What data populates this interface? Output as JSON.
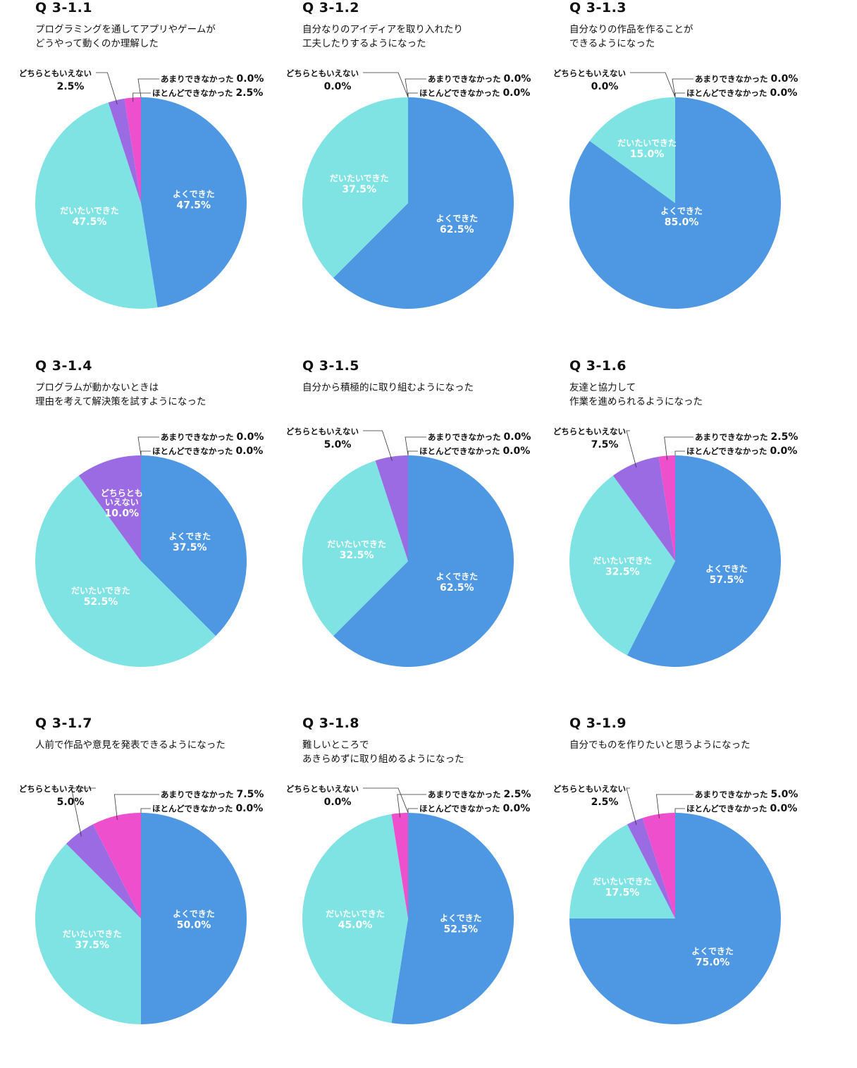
{
  "categories": [
    "よくできた",
    "だいたいできた",
    "どちらともいえない",
    "あまりできなかった",
    "ほとんどできなかった"
  ],
  "colors": {
    "よくできた": "#4e98e3",
    "だいたいできた": "#7fe3e3",
    "どちらともいえない": "#9b6be3",
    "あまりできなかった": "#ee4fcc",
    "ほとんどできなかった": "#ee4fcc"
  },
  "chart_data": [
    {
      "type": "pie",
      "id": "Q 3-1.1",
      "title": "プログラミングを通してアプリやゲームが\nどうやって動くのか理解した",
      "slices": [
        {
          "label": "よくできた",
          "value": 47.5,
          "display": "47.5%"
        },
        {
          "label": "だいたいできた",
          "value": 47.5,
          "display": "47.5%"
        },
        {
          "label": "どちらともいえない",
          "value": 2.5,
          "display": "2.5%"
        },
        {
          "label": "あまりできなかった",
          "value": 0.0,
          "display": "0.0%"
        },
        {
          "label": "ほとんどできなかった",
          "value": 2.5,
          "display": "2.5%"
        }
      ]
    },
    {
      "type": "pie",
      "id": "Q 3-1.2",
      "title": "自分なりのアイディアを取り入れたり\n工夫したりするようになった",
      "slices": [
        {
          "label": "よくできた",
          "value": 62.5,
          "display": "62.5%"
        },
        {
          "label": "だいたいできた",
          "value": 37.5,
          "display": "37.5%"
        },
        {
          "label": "どちらともいえない",
          "value": 0.0,
          "display": "0.0%"
        },
        {
          "label": "あまりできなかった",
          "value": 0.0,
          "display": "0.0%"
        },
        {
          "label": "ほとんどできなかった",
          "value": 0.0,
          "display": "0.0%"
        }
      ]
    },
    {
      "type": "pie",
      "id": "Q 3-1.3",
      "title": "自分なりの作品を作ることが\nできるようになった",
      "slices": [
        {
          "label": "よくできた",
          "value": 85.0,
          "display": "85.0%"
        },
        {
          "label": "だいたいできた",
          "value": 15.0,
          "display": "15.0%"
        },
        {
          "label": "どちらともいえない",
          "value": 0.0,
          "display": "0.0%"
        },
        {
          "label": "あまりできなかった",
          "value": 0.0,
          "display": "0.0%"
        },
        {
          "label": "ほとんどできなかった",
          "value": 0.0,
          "display": "0.0%"
        }
      ]
    },
    {
      "type": "pie",
      "id": "Q 3-1.4",
      "title": "プログラムが動かないときは\n理由を考えて解決策を試すようになった",
      "slices": [
        {
          "label": "よくできた",
          "value": 37.5,
          "display": "37.5%"
        },
        {
          "label": "だいたいできた",
          "value": 52.5,
          "display": "52.5%"
        },
        {
          "label": "どちらともいえない",
          "value": 10.0,
          "display": "10.0%",
          "text": "どちらとも\nいえない"
        },
        {
          "label": "あまりできなかった",
          "value": 0.0,
          "display": "0.0%"
        },
        {
          "label": "ほとんどできなかった",
          "value": 0.0,
          "display": "0.0%"
        }
      ]
    },
    {
      "type": "pie",
      "id": "Q 3-1.5",
      "title": "自分から積極的に取り組むようになった",
      "slices": [
        {
          "label": "よくできた",
          "value": 62.5,
          "display": "62.5%"
        },
        {
          "label": "だいたいできた",
          "value": 32.5,
          "display": "32.5%"
        },
        {
          "label": "どちらともいえない",
          "value": 5.0,
          "display": "5.0%"
        },
        {
          "label": "あまりできなかった",
          "value": 0.0,
          "display": "0.0%"
        },
        {
          "label": "ほとんどできなかった",
          "value": 0.0,
          "display": "0.0%"
        }
      ]
    },
    {
      "type": "pie",
      "id": "Q 3-1.6",
      "title": "友達と協力して\n作業を進められるようになった",
      "slices": [
        {
          "label": "よくできた",
          "value": 57.5,
          "display": "57.5%"
        },
        {
          "label": "だいたいできた",
          "value": 32.5,
          "display": "32.5%"
        },
        {
          "label": "どちらともいえない",
          "value": 7.5,
          "display": "7.5%"
        },
        {
          "label": "あまりできなかった",
          "value": 2.5,
          "display": "2.5%"
        },
        {
          "label": "ほとんどできなかった",
          "value": 0.0,
          "display": "0.0%"
        }
      ]
    },
    {
      "type": "pie",
      "id": "Q 3-1.7",
      "title": "人前で作品や意見を発表できるようになった",
      "slices": [
        {
          "label": "よくできた",
          "value": 50.0,
          "display": "50.0%"
        },
        {
          "label": "だいたいできた",
          "value": 37.5,
          "display": "37.5%"
        },
        {
          "label": "どちらともいえない",
          "value": 5.0,
          "display": "5.0%"
        },
        {
          "label": "あまりできなかった",
          "value": 7.5,
          "display": "7.5%"
        },
        {
          "label": "ほとんどできなかった",
          "value": 0.0,
          "display": "0.0%"
        }
      ]
    },
    {
      "type": "pie",
      "id": "Q 3-1.8",
      "title": "難しいところで\nあきらめずに取り組めるようになった",
      "slices": [
        {
          "label": "よくできた",
          "value": 52.5,
          "display": "52.5%"
        },
        {
          "label": "だいたいできた",
          "value": 45.0,
          "display": "45.0%"
        },
        {
          "label": "どちらともいえない",
          "value": 0.0,
          "display": "0.0%"
        },
        {
          "label": "あまりできなかった",
          "value": 2.5,
          "display": "2.5%"
        },
        {
          "label": "ほとんどできなかった",
          "value": 0.0,
          "display": "0.0%"
        }
      ]
    },
    {
      "type": "pie",
      "id": "Q 3-1.9",
      "title": "自分でものを作りたいと思うようになった",
      "slices": [
        {
          "label": "よくできた",
          "value": 75.0,
          "display": "75.0%"
        },
        {
          "label": "だいたいできた",
          "value": 17.5,
          "display": "17.5%"
        },
        {
          "label": "どちらともいえない",
          "value": 2.5,
          "display": "2.5%"
        },
        {
          "label": "あまりできなかった",
          "value": 5.0,
          "display": "5.0%"
        },
        {
          "label": "ほとんどできなかった",
          "value": 0.0,
          "display": "0.0%"
        }
      ]
    }
  ]
}
